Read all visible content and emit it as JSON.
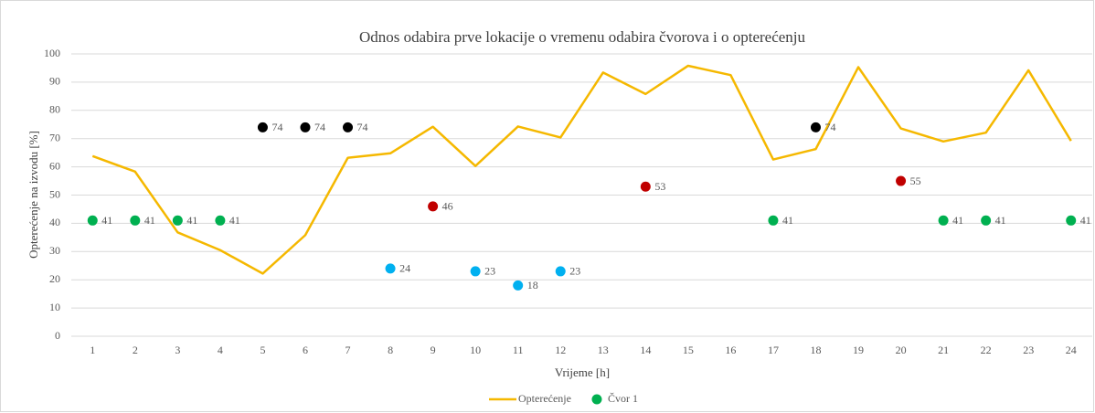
{
  "chart_data": {
    "type": "line",
    "title": "Odnos odabira prve lokacije o vremenu odabira čvorova i o opterećenju",
    "x_label": "Vrijeme [h]",
    "y_label": "Opterećenje na izvodu [%]",
    "categories": [
      "1",
      "2",
      "3",
      "4",
      "5",
      "6",
      "7",
      "8",
      "9",
      "10",
      "11",
      "12",
      "13",
      "14",
      "15",
      "16",
      "17",
      "18",
      "19",
      "20",
      "21",
      "22",
      "23",
      "24"
    ],
    "ylim": [
      0,
      100
    ],
    "yticks": [
      0,
      10,
      20,
      30,
      40,
      50,
      60,
      70,
      80,
      90,
      100
    ],
    "grid": true,
    "legend": "bottom",
    "series": [
      {
        "name": "Opterećenje",
        "type": "line",
        "color": "#f5b800",
        "values": [
          63.8,
          58.3,
          36.8,
          30.5,
          22.2,
          35.8,
          63.2,
          64.8,
          74.2,
          60.3,
          74.3,
          70.4,
          93.4,
          85.8,
          95.8,
          92.5,
          62.6,
          66.3,
          95.3,
          73.6,
          69.0,
          72.1,
          94.2,
          69.2
        ]
      },
      {
        "name": "Čvor 1",
        "type": "scatter",
        "color": "#00b050",
        "values": [
          41,
          41,
          41,
          41,
          74,
          74,
          74,
          24,
          46,
          23,
          18,
          23,
          null,
          53,
          null,
          null,
          41,
          74,
          null,
          55,
          41,
          41,
          null,
          41
        ],
        "point_colors": [
          "#00b050",
          "#00b050",
          "#00b050",
          "#00b050",
          "#000000",
          "#000000",
          "#000000",
          "#00b0f0",
          "#c00000",
          "#00b0f0",
          "#00b0f0",
          "#00b0f0",
          null,
          "#c00000",
          null,
          null,
          "#00b050",
          "#000000",
          null,
          "#c00000",
          "#00b050",
          "#00b050",
          null,
          "#00b050"
        ]
      }
    ]
  }
}
